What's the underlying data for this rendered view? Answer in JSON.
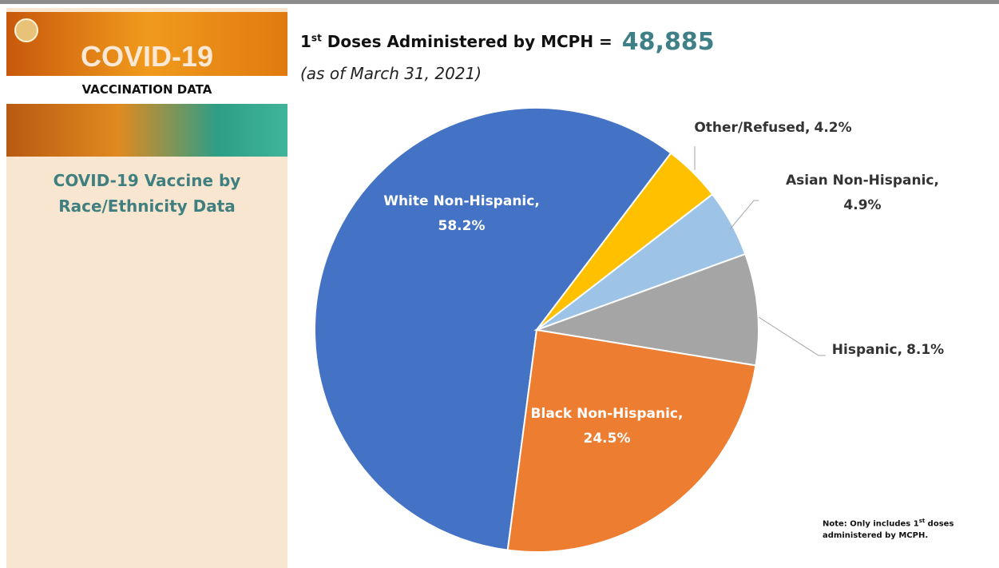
{
  "sidebar": {
    "banner": "COVID-19",
    "banner_sub": "VACCINATION DATA",
    "subtitle": "COVID-19 Vaccine by Race/Ethnicity Data"
  },
  "header": {
    "title_prefix": "1",
    "title_sup": "st",
    "title_rest": " Doses Administered by MCPH  =",
    "total": "48,885",
    "as_of": "(as of March 31, 2021)"
  },
  "note": {
    "prefix": "Note: Only includes 1",
    "sup": "st",
    "rest": " doses administered by MCPH."
  },
  "chart_data": {
    "type": "pie",
    "categories": [
      "White Non-Hispanic,",
      "Other/Refused,",
      "Asian Non-Hispanic,",
      "Hispanic,",
      "Black Non-Hispanic,"
    ],
    "values": [
      58.2,
      4.2,
      4.9,
      8.1,
      24.5
    ],
    "value_labels": [
      "58.2%",
      "4.2%",
      "4.9%",
      "8.1%",
      "24.5%"
    ],
    "colors": [
      "#4472c4",
      "#ffc000",
      "#9dc3e6",
      "#a5a5a5",
      "#ed7d31"
    ]
  }
}
